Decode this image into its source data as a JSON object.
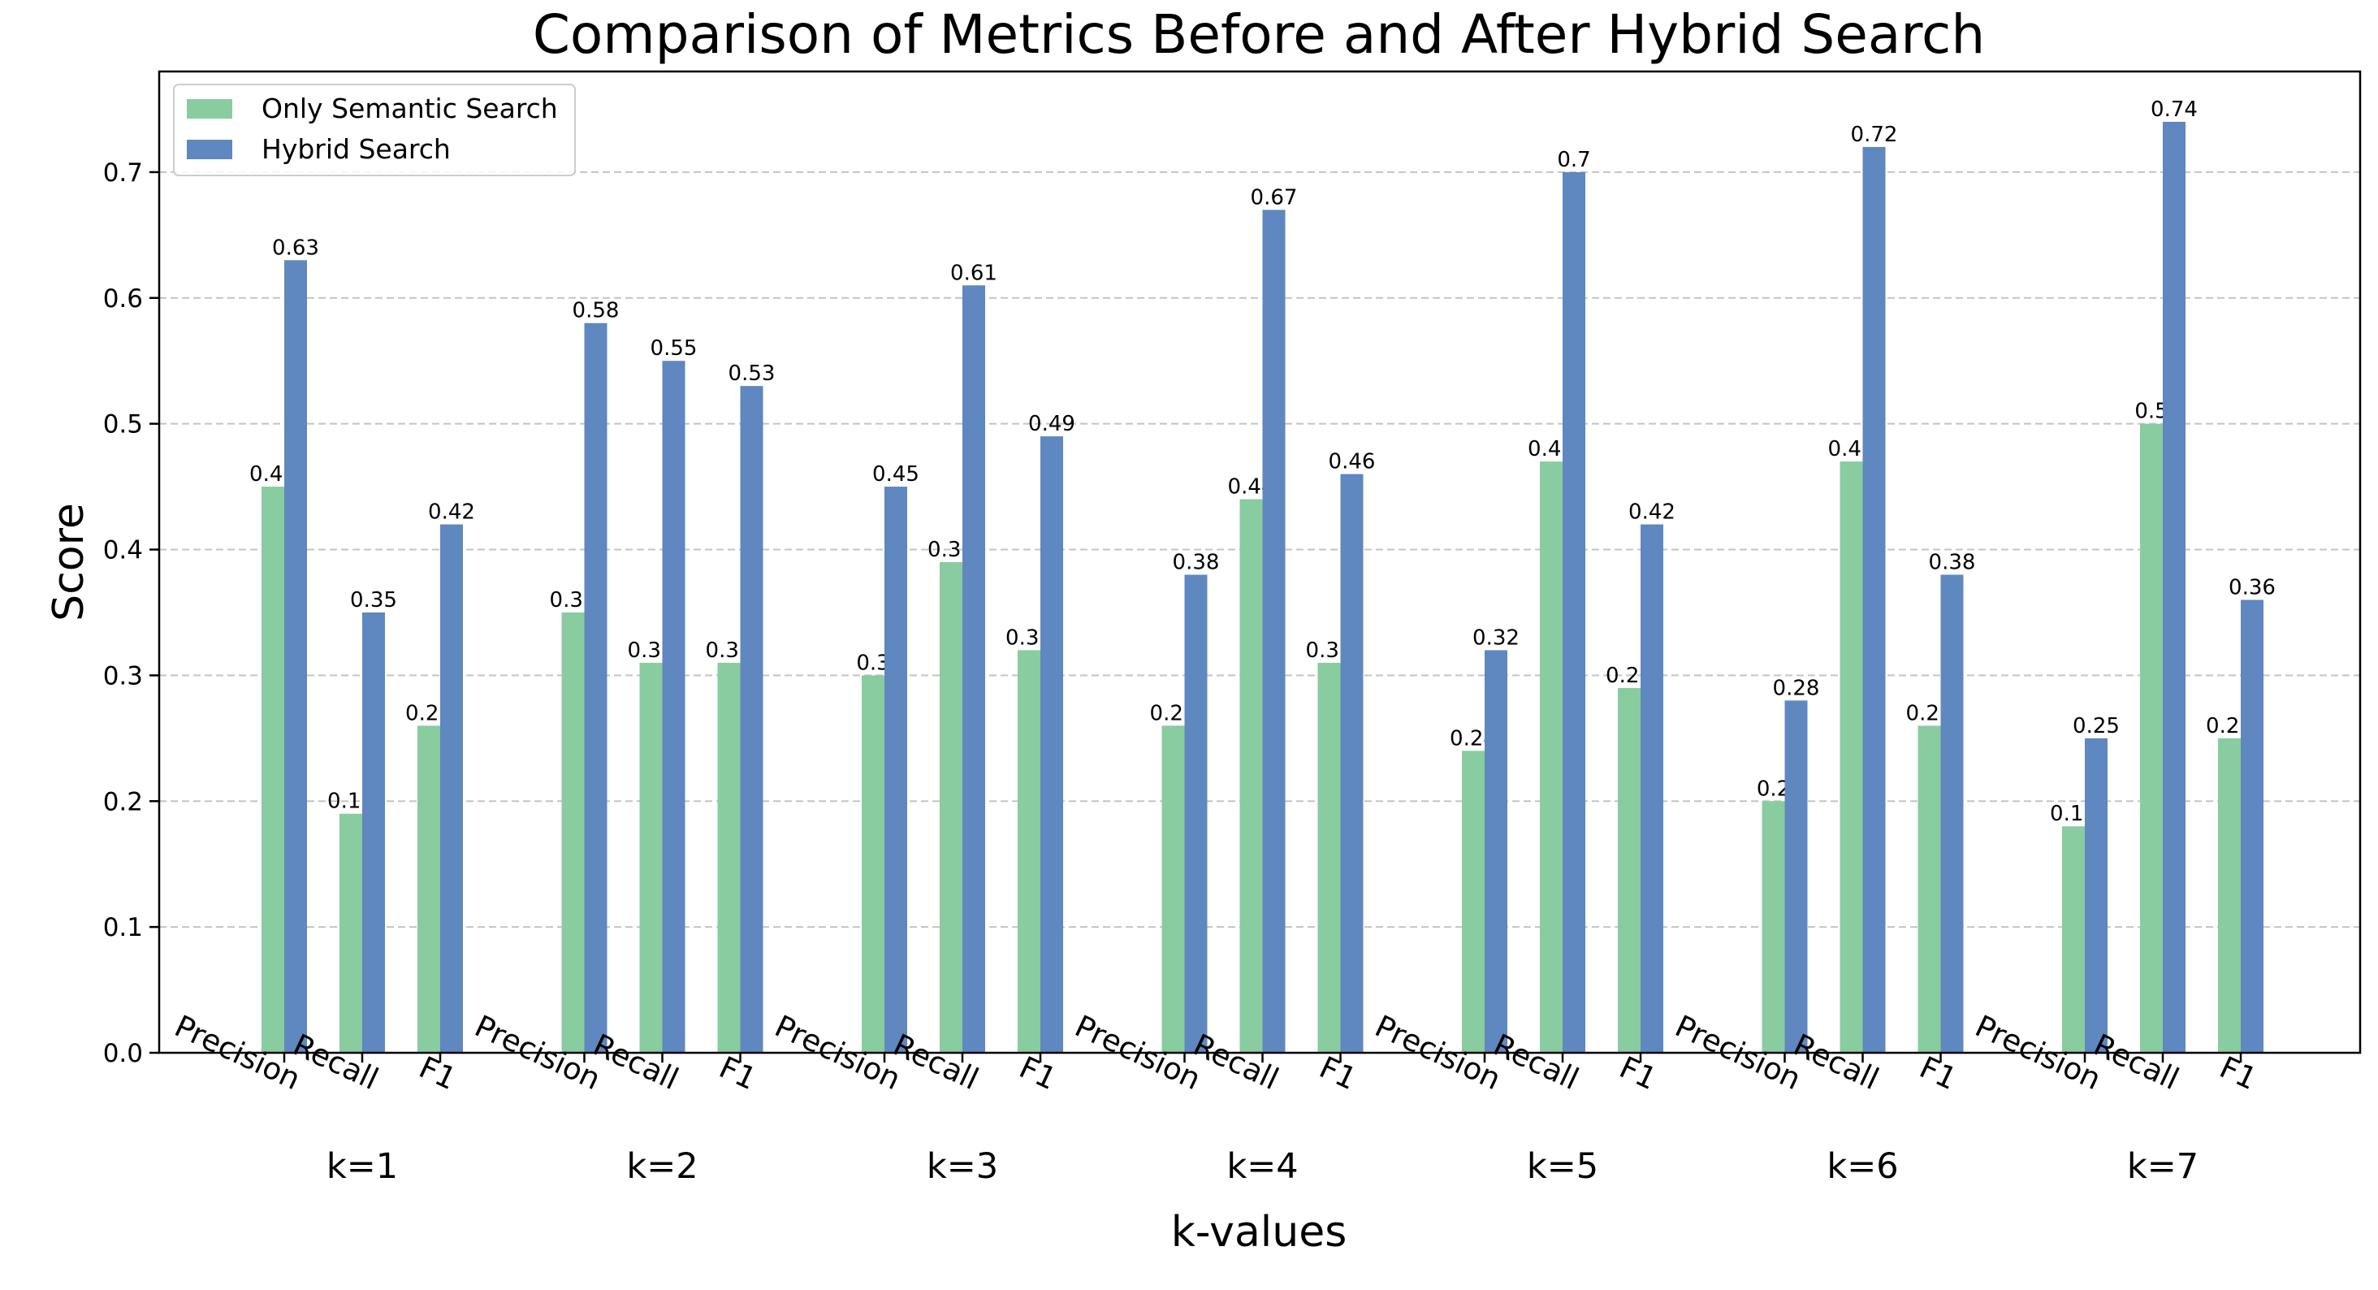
{
  "chart_data": {
    "type": "bar",
    "title": "Comparison of Metrics Before and After Hybrid Search",
    "xlabel": "k-values",
    "ylabel": "Score",
    "ylim": [
      0,
      0.78
    ],
    "yticks": [
      "0.0",
      "0.1",
      "0.2",
      "0.3",
      "0.4",
      "0.5",
      "0.6",
      "0.7"
    ],
    "grid": "y-dashed",
    "legend_placement": "top-left",
    "groups": [
      "k=1",
      "k=2",
      "k=3",
      "k=4",
      "k=5",
      "k=6",
      "k=7"
    ],
    "metrics": [
      "Precision",
      "Recall",
      "F1"
    ],
    "series": [
      {
        "name": "Only Semantic Search",
        "color": "#88ccA0",
        "values": [
          [
            0.45,
            0.19,
            0.26
          ],
          [
            0.35,
            0.31,
            0.31
          ],
          [
            0.3,
            0.39,
            0.32
          ],
          [
            0.26,
            0.44,
            0.31
          ],
          [
            0.24,
            0.47,
            0.29
          ],
          [
            0.2,
            0.47,
            0.26
          ],
          [
            0.18,
            0.5,
            0.25
          ]
        ]
      },
      {
        "name": "Hybrid Search",
        "color": "#5f87c0",
        "values": [
          [
            0.63,
            0.35,
            0.42
          ],
          [
            0.58,
            0.55,
            0.53
          ],
          [
            0.45,
            0.61,
            0.49
          ],
          [
            0.38,
            0.67,
            0.46
          ],
          [
            0.32,
            0.7,
            0.42
          ],
          [
            0.28,
            0.72,
            0.38
          ],
          [
            0.25,
            0.74,
            0.36
          ]
        ]
      }
    ]
  }
}
